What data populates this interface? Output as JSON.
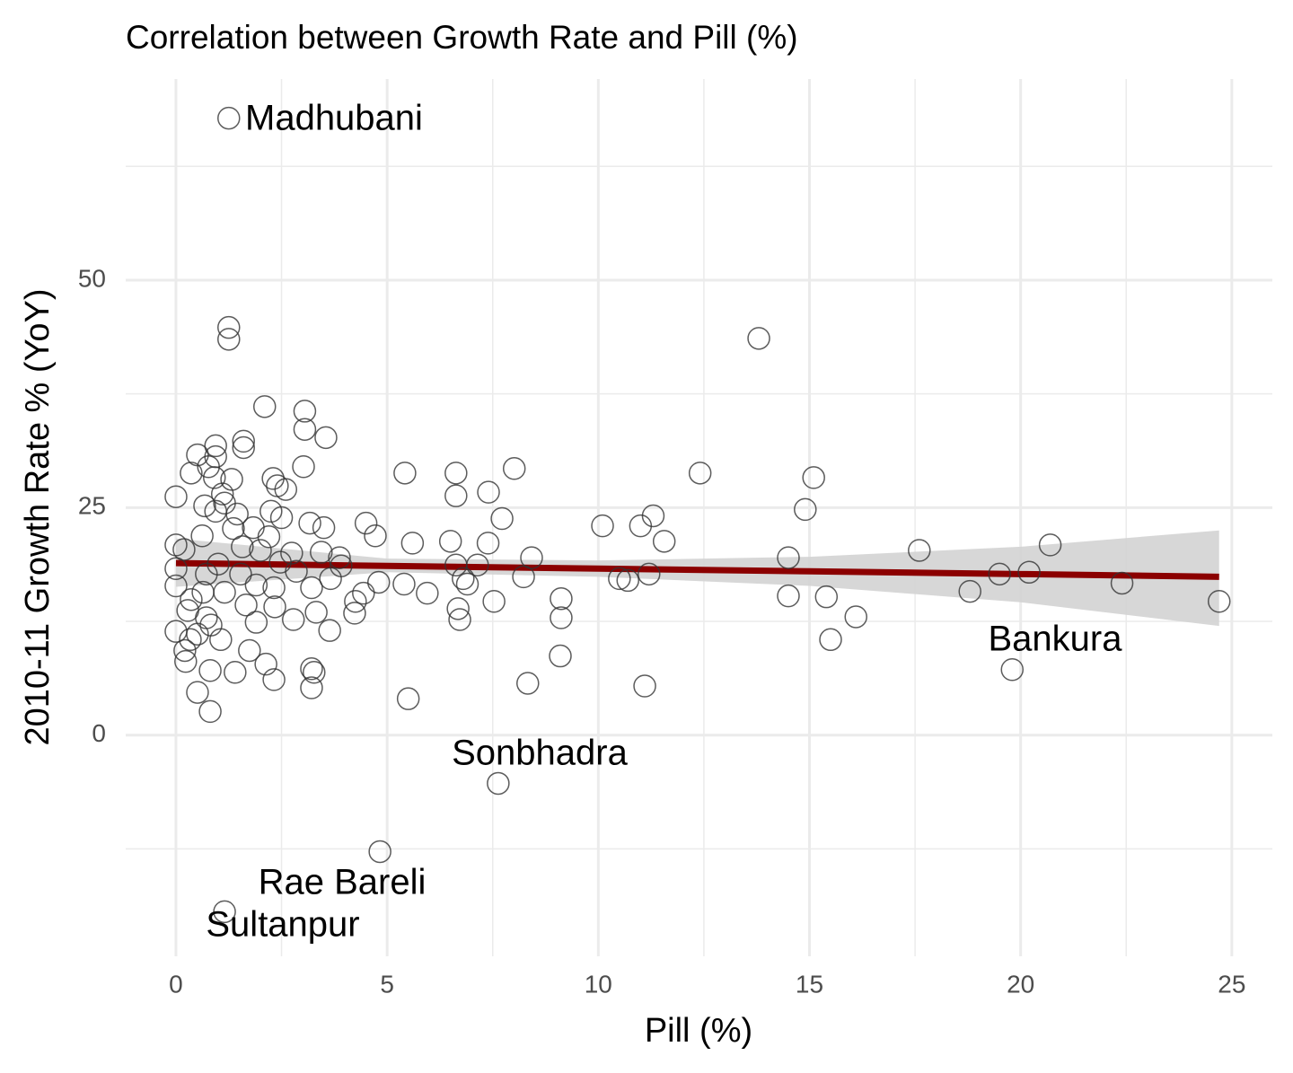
{
  "chart_data": {
    "type": "scatter",
    "title": "Correlation between Growth Rate and Pill (%)",
    "x_label": "Pill (%)",
    "y_label": "2010-11 Growth Rate % (YoY)",
    "xlim": [
      -1.19,
      25.96
    ],
    "ylim": [
      -24.3,
      72.1
    ],
    "xticks": [
      0,
      5,
      10,
      15,
      20,
      25
    ],
    "yticks": [
      0,
      25,
      50
    ],
    "grid": true,
    "point_color": "#333333",
    "x": [
      1.25,
      1.25,
      1.25,
      13.8,
      2.1,
      3.05,
      3.05,
      3.55,
      1.6,
      1.6,
      0.94,
      0.51,
      0.94,
      0.77,
      3.02,
      0.36,
      5.42,
      6.63,
      8.01,
      12.41,
      15.1,
      0.91,
      1.32,
      2.3,
      2.4,
      2.6,
      7.4,
      6.63,
      0,
      1.1,
      1.15,
      0.68,
      1.45,
      2.25,
      2.5,
      11.3,
      14.9,
      7.72,
      0.94,
      4.5,
      3.17,
      3.5,
      10.1,
      11.0,
      1.83,
      1.36,
      0.62,
      4.72,
      2.2,
      11.56,
      5.6,
      7.39,
      6.5,
      20.7,
      17.6,
      0,
      0.19,
      1.57,
      2.0,
      2.74,
      3.44,
      3.87,
      14.5,
      8.42,
      0,
      1.0,
      2.47,
      7.14,
      6.63,
      3.91,
      0.72,
      1.53,
      2.85,
      3.66,
      8.23,
      19.5,
      20.2,
      10.5,
      10.7,
      11.2,
      6.8,
      6.9,
      5.4,
      4.8,
      22.4,
      0,
      1.9,
      2.32,
      3.21,
      4.44,
      0.64,
      1.15,
      5.95,
      18.8,
      14.5,
      15.4,
      9.12,
      24.7,
      7.53,
      4.25,
      0.36,
      1.66,
      2.34,
      3.32,
      4.23,
      6.68,
      0.28,
      0.72,
      16.1,
      9.12,
      6.72,
      1.9,
      2.78,
      0.83,
      3.64,
      0,
      0.51,
      0.34,
      1.06,
      15.5,
      0.21,
      0.23,
      1.74,
      9.1,
      2.13,
      0.81,
      1.4,
      3.21,
      3.27,
      19.8,
      2.32,
      8.33,
      11.1,
      3.21,
      0.51,
      5.5,
      0.81,
      7.63,
      4.83,
      1.15
    ],
    "y": [
      67.8,
      44.8,
      43.5,
      43.6,
      36.1,
      35.6,
      33.6,
      32.7,
      32.3,
      31.6,
      31.8,
      30.8,
      30.6,
      29.5,
      29.5,
      28.8,
      28.8,
      28.8,
      29.3,
      28.8,
      28.3,
      28.3,
      28.1,
      28.2,
      27.4,
      27.0,
      26.7,
      26.3,
      26.2,
      26.5,
      25.5,
      25.2,
      24.3,
      24.6,
      23.9,
      24.1,
      24.8,
      23.8,
      24.6,
      23.3,
      23.3,
      22.8,
      23.0,
      23.0,
      22.8,
      22.7,
      21.9,
      21.9,
      21.8,
      21.3,
      21.1,
      21.1,
      21.3,
      20.9,
      20.3,
      20.9,
      20.4,
      20.7,
      20.3,
      20.0,
      20.1,
      19.5,
      19.5,
      19.5,
      18.3,
      18.8,
      19.0,
      18.7,
      18.7,
      18.6,
      17.7,
      17.7,
      18.0,
      17.2,
      17.4,
      17.7,
      17.9,
      17.2,
      17.0,
      17.7,
      17.2,
      16.6,
      16.6,
      16.8,
      16.7,
      16.4,
      16.5,
      16.2,
      16.2,
      15.6,
      15.7,
      15.7,
      15.6,
      15.8,
      15.3,
      15.2,
      15.0,
      14.7,
      14.7,
      14.7,
      14.9,
      14.3,
      14.1,
      13.5,
      13.4,
      13.9,
      13.7,
      12.9,
      13.0,
      12.9,
      12.7,
      12.4,
      12.7,
      12.1,
      11.5,
      11.4,
      11.1,
      10.5,
      10.5,
      10.5,
      9.3,
      8.1,
      9.3,
      8.7,
      7.8,
      7.1,
      6.9,
      7.3,
      6.9,
      7.2,
      6.1,
      5.7,
      5.4,
      5.2,
      4.7,
      4.0,
      2.6,
      -5.3,
      -12.8,
      -19.4
    ],
    "fit": {
      "color": "#8b0000",
      "band_color": "#d3d3d3",
      "x": [
        0,
        5,
        10,
        15,
        20,
        24.7
      ],
      "y": [
        18.9,
        18.6,
        18.3,
        18.0,
        17.7,
        17.4
      ],
      "lower": [
        16.3,
        17.9,
        17.4,
        16.4,
        14.6,
        12.0
      ],
      "upper": [
        21.6,
        19.4,
        19.2,
        19.6,
        20.7,
        22.5
      ]
    },
    "annotations": [
      "Madhubani",
      "Bankura",
      "Sonbhadra",
      "Rae Bareli",
      "Sultanpur"
    ]
  }
}
